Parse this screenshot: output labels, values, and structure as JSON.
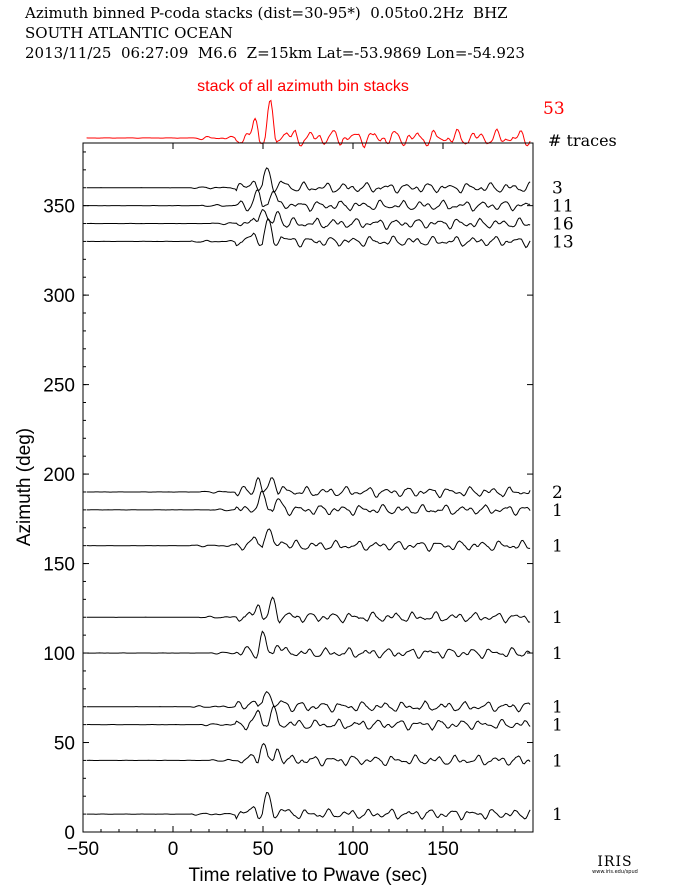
{
  "header": {
    "line1": "Azimuth binned P-coda stacks (dist=30-95*)  0.05to0.2Hz  BHZ",
    "line2": "SOUTH ATLANTIC OCEAN",
    "line3": "2013/11/25  06:27:09  M6.6  Z=15km Lat=-53.9869 Lon=-54.923"
  },
  "logo": {
    "text": "IRIS",
    "url_text": "www.iris.edu/spud"
  },
  "chart_data": {
    "type": "line",
    "xlabel": "Time relative to Pwave (sec)",
    "ylabel": "Azimuth (deg)",
    "xlim": [
      -50,
      200
    ],
    "ylim": [
      0,
      385
    ],
    "xticks": [
      -50,
      0,
      50,
      100,
      150
    ],
    "yticks": [
      0,
      50,
      100,
      150,
      200,
      250,
      300,
      350
    ],
    "grid": false,
    "stack": {
      "label": "stack of all azimuth bin stacks",
      "count": "53",
      "color": "#ff0000"
    },
    "count_header": "# traces",
    "series": [
      {
        "azimuth": 360,
        "count": "3"
      },
      {
        "azimuth": 350,
        "count": "11"
      },
      {
        "azimuth": 340,
        "count": "16"
      },
      {
        "azimuth": 330,
        "count": "13"
      },
      {
        "azimuth": 190,
        "count": "2"
      },
      {
        "azimuth": 180,
        "count": "1"
      },
      {
        "azimuth": 160,
        "count": "1"
      },
      {
        "azimuth": 120,
        "count": "1"
      },
      {
        "azimuth": 100,
        "count": "1"
      },
      {
        "azimuth": 70,
        "count": "1"
      },
      {
        "azimuth": 60,
        "count": "1"
      },
      {
        "azimuth": 40,
        "count": "1"
      },
      {
        "azimuth": 10,
        "count": "1"
      }
    ]
  }
}
